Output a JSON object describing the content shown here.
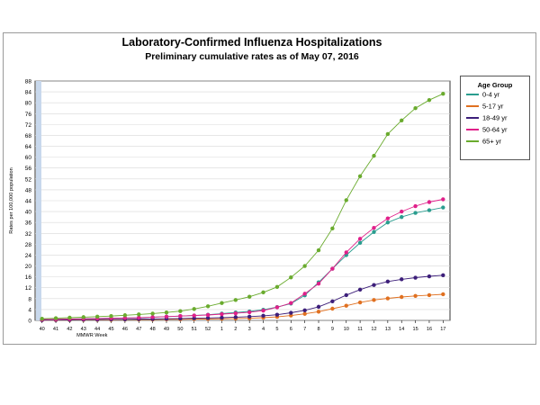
{
  "chart_data": {
    "type": "line",
    "title": "Laboratory-Confirmed Influenza Hospitalizations",
    "subtitle": "Preliminary cumulative rates as of May 07, 2016",
    "xlabel": "MMWR Week",
    "ylabel": "Rates per 100,000 population",
    "ylim": [
      0,
      88
    ],
    "yticks": [
      0,
      4,
      8,
      12,
      16,
      20,
      24,
      28,
      32,
      36,
      40,
      44,
      48,
      52,
      56,
      60,
      64,
      68,
      72,
      76,
      80,
      84,
      88
    ],
    "categories": [
      "40",
      "41",
      "42",
      "43",
      "44",
      "45",
      "46",
      "47",
      "48",
      "49",
      "50",
      "51",
      "52",
      "1",
      "2",
      "3",
      "4",
      "5",
      "6",
      "7",
      "8",
      "9",
      "10",
      "11",
      "12",
      "13",
      "14",
      "15",
      "16",
      "17"
    ],
    "grid": true,
    "legend": {
      "title": "Age Group",
      "placement": "right"
    },
    "series": [
      {
        "name": "0-4 yr",
        "color": "#2a9d8f",
        "values": [
          0.3,
          0.4,
          0.5,
          0.6,
          0.7,
          0.8,
          0.9,
          1.0,
          1.2,
          1.4,
          1.6,
          1.8,
          2.1,
          2.5,
          2.9,
          3.3,
          3.9,
          4.9,
          6.2,
          9.2,
          14.0,
          19.0,
          24.0,
          28.5,
          32.5,
          36.0,
          38.0,
          39.5,
          40.5,
          41.5
        ]
      },
      {
        "name": "5-17 yr",
        "color": "#e07020",
        "values": [
          0.1,
          0.1,
          0.1,
          0.2,
          0.2,
          0.2,
          0.3,
          0.3,
          0.3,
          0.4,
          0.4,
          0.5,
          0.5,
          0.6,
          0.7,
          0.8,
          1.0,
          1.3,
          1.8,
          2.4,
          3.2,
          4.3,
          5.4,
          6.6,
          7.5,
          8.1,
          8.6,
          9.0,
          9.3,
          9.6
        ]
      },
      {
        "name": "18-49 yr",
        "color": "#3d1f7a",
        "values": [
          0.1,
          0.2,
          0.2,
          0.3,
          0.3,
          0.4,
          0.4,
          0.5,
          0.5,
          0.6,
          0.7,
          0.8,
          0.9,
          1.0,
          1.2,
          1.4,
          1.7,
          2.1,
          2.8,
          3.7,
          5.0,
          7.0,
          9.3,
          11.3,
          13.0,
          14.3,
          15.1,
          15.7,
          16.2,
          16.6
        ]
      },
      {
        "name": "50-64 yr",
        "color": "#e0208a",
        "values": [
          0.3,
          0.4,
          0.5,
          0.6,
          0.7,
          0.8,
          0.9,
          1.0,
          1.2,
          1.4,
          1.6,
          1.8,
          2.0,
          2.3,
          2.6,
          3.0,
          3.6,
          4.8,
          6.4,
          9.8,
          13.5,
          19.0,
          25.0,
          30.0,
          34.0,
          37.5,
          40.0,
          42.0,
          43.5,
          44.5
        ]
      },
      {
        "name": "65+ yr",
        "color": "#6aab2e",
        "values": [
          0.6,
          0.8,
          1.0,
          1.2,
          1.4,
          1.6,
          1.9,
          2.2,
          2.5,
          2.9,
          3.4,
          4.2,
          5.2,
          6.4,
          7.5,
          8.7,
          10.3,
          12.3,
          15.8,
          20.0,
          25.8,
          33.8,
          44.2,
          53.0,
          60.5,
          68.5,
          73.5,
          78.0,
          81.0,
          83.3
        ]
      }
    ]
  }
}
